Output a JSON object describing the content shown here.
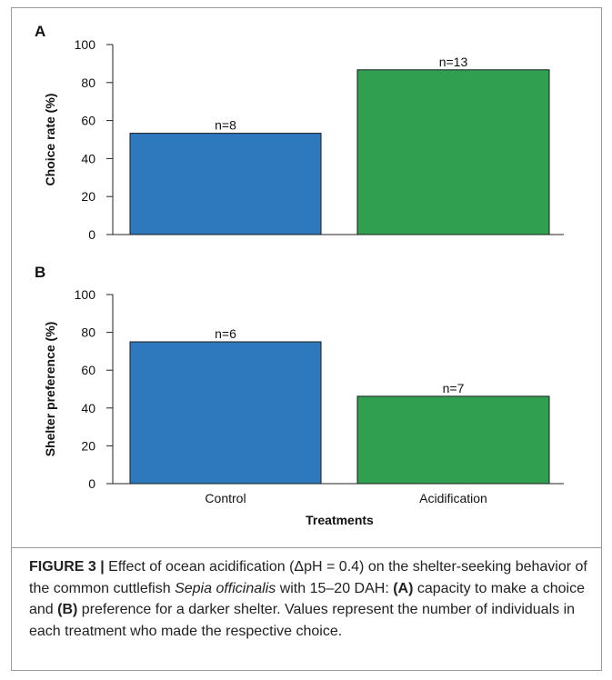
{
  "chart_data": [
    {
      "type": "bar",
      "panel_label": "A",
      "categories": [
        "Control",
        "Acidification"
      ],
      "values": [
        53.3,
        86.7
      ],
      "data_labels": [
        "n=8",
        "n=13"
      ],
      "colors": [
        "#2E78BE",
        "#30A050"
      ],
      "ylabel": "Choice rate (%)",
      "xlabel": "",
      "ylim": [
        0,
        100
      ],
      "yticks": [
        "0",
        "20",
        "40",
        "60",
        "80",
        "100"
      ],
      "show_category_labels": false
    },
    {
      "type": "bar",
      "panel_label": "B",
      "categories": [
        "Control",
        "Acidification"
      ],
      "values": [
        75.0,
        46.2
      ],
      "data_labels": [
        "n=6",
        "n=7"
      ],
      "colors": [
        "#2E78BE",
        "#30A050"
      ],
      "ylabel": "Shelter preference (%)",
      "xlabel": "Treatments",
      "ylim": [
        0,
        100
      ],
      "yticks": [
        "0",
        "20",
        "40",
        "60",
        "80",
        "100"
      ],
      "show_category_labels": true
    }
  ],
  "caption": {
    "label": "FIGURE 3 |",
    "text1": " Effect of ocean acidification (ΔpH = 0.4) on the shelter-seeking behavior of the common cuttlefish ",
    "species": "Sepia officinalis",
    "text2": " with 15–20 DAH: ",
    "markA": "(A)",
    "text3": " capacity to make a choice and ",
    "markB": "(B)",
    "text4": " preference for a darker shelter. Values represent the number of individuals in each treatment who made the respective choice."
  }
}
